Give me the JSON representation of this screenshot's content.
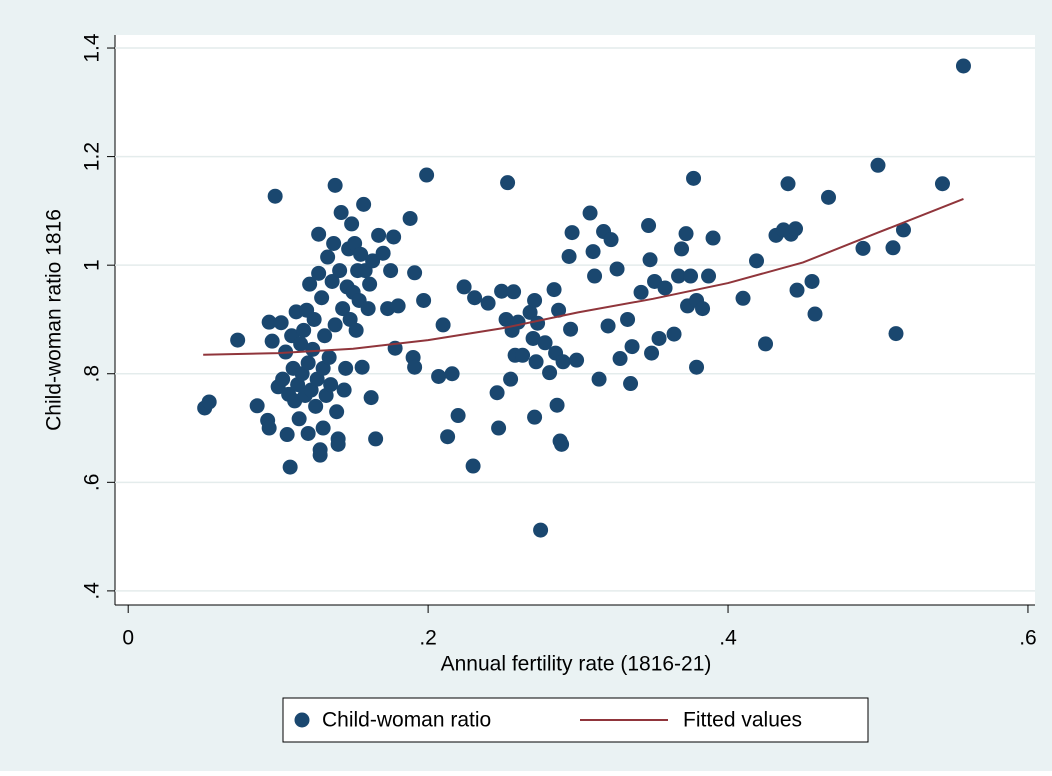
{
  "chart_data": {
    "type": "scatter",
    "x_label": "Annual fertility rate (1816-21)",
    "y_label": "Child-woman ratio 1816",
    "xlim": [
      -0.0088,
      0.6047
    ],
    "ylim": [
      0.374,
      1.424
    ],
    "xticks": [
      0,
      {
        "value": 0.2,
        "label": ".2"
      },
      {
        "value": 0.4,
        "label": ".4"
      },
      {
        "value": 0.6,
        "label": ".6"
      }
    ],
    "yticks": [
      {
        "value": 0.4,
        "label": ".4"
      },
      {
        "value": 0.6,
        "label": ".6"
      },
      {
        "value": 0.8,
        "label": ".8"
      },
      1,
      {
        "value": 1.2,
        "label": "1.2"
      },
      {
        "value": 1.4,
        "label": "1.4"
      }
    ],
    "grid": true,
    "legend": "bottom",
    "series": [
      {
        "name": "Child-woman ratio",
        "type": "scatter",
        "color": "#1a476f",
        "x": [
          0.051,
          0.054,
          0.073,
          0.086,
          0.093,
          0.094,
          0.094,
          0.098,
          0.096,
          0.1,
          0.102,
          0.103,
          0.105,
          0.106,
          0.107,
          0.108,
          0.109,
          0.11,
          0.111,
          0.112,
          0.113,
          0.114,
          0.115,
          0.116,
          0.117,
          0.118,
          0.119,
          0.12,
          0.12,
          0.121,
          0.122,
          0.123,
          0.124,
          0.125,
          0.126,
          0.127,
          0.127,
          0.128,
          0.128,
          0.129,
          0.13,
          0.13,
          0.131,
          0.132,
          0.133,
          0.134,
          0.135,
          0.136,
          0.137,
          0.138,
          0.138,
          0.139,
          0.14,
          0.14,
          0.141,
          0.142,
          0.143,
          0.144,
          0.145,
          0.146,
          0.147,
          0.148,
          0.149,
          0.15,
          0.151,
          0.152,
          0.153,
          0.154,
          0.155,
          0.156,
          0.157,
          0.158,
          0.16,
          0.161,
          0.162,
          0.163,
          0.165,
          0.167,
          0.17,
          0.173,
          0.175,
          0.177,
          0.178,
          0.18,
          0.188,
          0.19,
          0.191,
          0.191,
          0.197,
          0.199,
          0.207,
          0.21,
          0.213,
          0.216,
          0.22,
          0.224,
          0.23,
          0.231,
          0.24,
          0.246,
          0.247,
          0.249,
          0.252,
          0.253,
          0.255,
          0.256,
          0.257,
          0.258,
          0.26,
          0.263,
          0.268,
          0.27,
          0.271,
          0.271,
          0.272,
          0.273,
          0.275,
          0.278,
          0.281,
          0.284,
          0.285,
          0.286,
          0.287,
          0.288,
          0.289,
          0.29,
          0.294,
          0.295,
          0.296,
          0.299,
          0.308,
          0.31,
          0.311,
          0.314,
          0.317,
          0.32,
          0.322,
          0.326,
          0.328,
          0.333,
          0.335,
          0.336,
          0.342,
          0.347,
          0.348,
          0.349,
          0.351,
          0.354,
          0.358,
          0.364,
          0.367,
          0.369,
          0.372,
          0.373,
          0.375,
          0.377,
          0.379,
          0.379,
          0.383,
          0.387,
          0.39,
          0.41,
          0.419,
          0.425,
          0.432,
          0.437,
          0.44,
          0.442,
          0.445,
          0.446,
          0.456,
          0.458,
          0.467,
          0.49,
          0.5,
          0.51,
          0.512,
          0.517,
          0.543,
          0.557
        ],
        "values": [
          0.737,
          0.748,
          0.862,
          0.741,
          0.714,
          0.7,
          0.895,
          1.127,
          0.86,
          0.776,
          0.894,
          0.79,
          0.84,
          0.688,
          0.762,
          0.628,
          0.87,
          0.81,
          0.75,
          0.914,
          0.78,
          0.717,
          0.855,
          0.8,
          0.88,
          0.76,
          0.917,
          0.69,
          0.82,
          0.965,
          0.77,
          0.845,
          0.9,
          0.74,
          0.79,
          0.985,
          1.057,
          0.66,
          0.65,
          0.94,
          0.7,
          0.81,
          0.87,
          0.76,
          1.015,
          0.83,
          0.78,
          0.97,
          1.04,
          1.147,
          0.89,
          0.73,
          0.68,
          0.67,
          0.99,
          1.097,
          0.92,
          0.77,
          0.81,
          0.96,
          1.03,
          0.9,
          1.076,
          0.95,
          1.04,
          0.88,
          0.99,
          0.935,
          1.02,
          0.812,
          1.112,
          0.99,
          0.92,
          0.965,
          0.756,
          1.008,
          0.68,
          1.055,
          1.022,
          0.92,
          0.99,
          1.052,
          0.847,
          0.925,
          1.086,
          0.83,
          0.986,
          0.812,
          0.935,
          1.166,
          0.795,
          0.89,
          0.684,
          0.8,
          0.723,
          0.96,
          0.63,
          0.94,
          0.93,
          0.765,
          0.7,
          0.952,
          0.9,
          1.152,
          0.79,
          0.88,
          0.951,
          0.834,
          0.895,
          0.834,
          0.913,
          0.865,
          0.72,
          0.935,
          0.822,
          0.893,
          0.512,
          0.857,
          0.802,
          0.955,
          0.838,
          0.742,
          0.917,
          0.676,
          0.67,
          0.822,
          1.016,
          0.882,
          1.06,
          0.825,
          1.096,
          1.025,
          0.98,
          0.79,
          1.062,
          0.888,
          1.047,
          0.993,
          0.828,
          0.9,
          0.782,
          0.85,
          0.95,
          1.073,
          1.01,
          0.838,
          0.97,
          0.865,
          0.958,
          0.873,
          0.98,
          1.03,
          1.058,
          0.925,
          0.98,
          1.16,
          0.935,
          0.812,
          0.92,
          0.98,
          1.05,
          0.939,
          1.008,
          0.855,
          1.055,
          1.065,
          1.15,
          1.057,
          1.067,
          0.954,
          0.97,
          0.91,
          1.125,
          1.031,
          1.184,
          1.032,
          0.874,
          1.065,
          1.15,
          1.367
        ]
      },
      {
        "name": "Fitted values",
        "type": "line",
        "color": "#90353b",
        "x": [
          0.05,
          0.1,
          0.15,
          0.2,
          0.25,
          0.3,
          0.35,
          0.4,
          0.45,
          0.5,
          0.557
        ],
        "values": [
          0.835,
          0.838,
          0.846,
          0.862,
          0.884,
          0.913,
          0.938,
          0.967,
          1.005,
          1.06,
          1.122
        ]
      }
    ]
  }
}
